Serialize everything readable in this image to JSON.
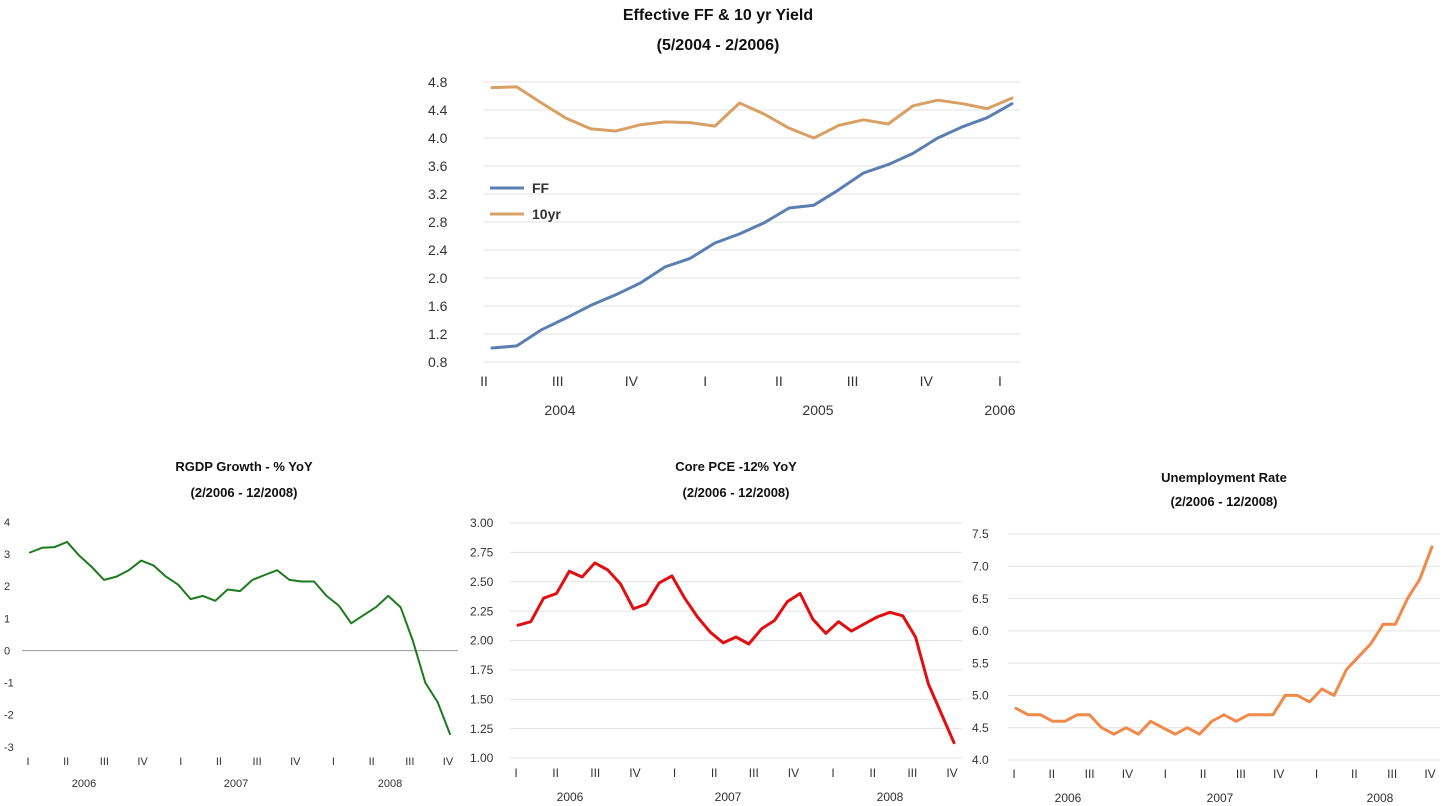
{
  "chart_data": [
    {
      "id": "ff",
      "type": "line",
      "title": "Effective FF & 10 yr Yield",
      "subtitle": "(5/2004 - 2/2006)",
      "ylim": [
        0.8,
        4.8
      ],
      "yticks": [
        "0.8",
        "1.2",
        "1.6",
        "2.0",
        "2.4",
        "2.8",
        "3.2",
        "3.6",
        "4.0",
        "4.4",
        "4.8"
      ],
      "quarter_labels": [
        "II",
        "III",
        "IV",
        "I",
        "II",
        "III",
        "IV",
        "I"
      ],
      "year_labels": [
        "2004",
        "2005",
        "2006"
      ],
      "grid": true,
      "legend": "left",
      "series": [
        {
          "name": "FF",
          "color": "#5b7fb0",
          "values": [
            1.0,
            1.03,
            1.26,
            1.43,
            1.61,
            1.76,
            1.93,
            2.16,
            2.28,
            2.5,
            2.63,
            2.79,
            3.0,
            3.04,
            3.26,
            3.5,
            3.62,
            3.78,
            4.0,
            4.16,
            4.29,
            4.49
          ]
        },
        {
          "name": "10yr",
          "color": "#d9a066",
          "values": [
            4.72,
            4.73,
            4.5,
            4.28,
            4.13,
            4.1,
            4.19,
            4.23,
            4.22,
            4.17,
            4.5,
            4.34,
            4.14,
            4.0,
            4.18,
            4.26,
            4.2,
            4.46,
            4.54,
            4.49,
            4.42,
            4.57
          ]
        }
      ]
    },
    {
      "id": "rgdp",
      "type": "line",
      "title": "RGDP Growth - % YoY",
      "subtitle": "(2/2006 - 12/2008)",
      "ylim": [
        -3,
        4
      ],
      "yticks": [
        "-3",
        "-2",
        "-1",
        "0",
        "1",
        "2",
        "3",
        "4"
      ],
      "quarter_labels": [
        "I",
        "II",
        "III",
        "IV",
        "I",
        "II",
        "III",
        "IV",
        "I",
        "II",
        "III",
        "IV"
      ],
      "year_labels": [
        "2006",
        "2007",
        "2008"
      ],
      "grid": false,
      "series": [
        {
          "name": "",
          "color": "#1e7a1e",
          "values": [
            3.05,
            3.2,
            3.22,
            3.38,
            2.95,
            2.6,
            2.2,
            2.3,
            2.5,
            2.8,
            2.65,
            2.3,
            2.05,
            1.6,
            1.7,
            1.55,
            1.9,
            1.85,
            2.2,
            2.35,
            2.5,
            2.2,
            2.15,
            2.15,
            1.7,
            1.4,
            0.85,
            1.1,
            1.35,
            1.7,
            1.35,
            0.3,
            -1.0,
            -1.6,
            -2.6
          ]
        }
      ]
    },
    {
      "id": "pce",
      "type": "line",
      "title": "Core PCE -12% YoY",
      "subtitle": "(2/2006 - 12/2008)",
      "ylim": [
        1.0,
        3.0
      ],
      "yticks": [
        "1.00",
        "1.25",
        "1.50",
        "1.75",
        "2.00",
        "2.25",
        "2.50",
        "2.75",
        "3.00"
      ],
      "quarter_labels": [
        "I",
        "II",
        "III",
        "IV",
        "I",
        "II",
        "III",
        "IV",
        "I",
        "II",
        "III",
        "IV"
      ],
      "year_labels": [
        "2006",
        "2007",
        "2008"
      ],
      "grid": true,
      "series": [
        {
          "name": "",
          "color": "#e01010",
          "values": [
            2.13,
            2.16,
            2.36,
            2.4,
            2.59,
            2.54,
            2.66,
            2.6,
            2.48,
            2.27,
            2.31,
            2.49,
            2.55,
            2.36,
            2.2,
            2.07,
            1.98,
            2.03,
            1.97,
            2.1,
            2.17,
            2.33,
            2.4,
            2.18,
            2.06,
            2.16,
            2.08,
            2.14,
            2.2,
            2.24,
            2.21,
            2.03,
            1.63,
            1.38,
            1.13
          ]
        }
      ]
    },
    {
      "id": "unemp",
      "type": "line",
      "title": "Unemployment Rate",
      "subtitle": "(2/2006 - 12/2008)",
      "ylim": [
        4.0,
        7.5
      ],
      "yticks": [
        "4.0",
        "4.5",
        "5.0",
        "5.5",
        "6.0",
        "6.5",
        "7.0",
        "7.5"
      ],
      "quarter_labels": [
        "I",
        "II",
        "III",
        "IV",
        "I",
        "II",
        "III",
        "IV",
        "I",
        "II",
        "III",
        "IV"
      ],
      "year_labels": [
        "2006",
        "2007",
        "2008"
      ],
      "grid": true,
      "series": [
        {
          "name": "",
          "color": "#f08a4b",
          "values": [
            4.8,
            4.7,
            4.7,
            4.6,
            4.6,
            4.7,
            4.7,
            4.5,
            4.4,
            4.5,
            4.4,
            4.6,
            4.5,
            4.4,
            4.5,
            4.4,
            4.6,
            4.7,
            4.6,
            4.7,
            4.7,
            4.7,
            5.0,
            5.0,
            4.9,
            5.1,
            5.0,
            5.4,
            5.6,
            5.8,
            6.1,
            6.1,
            6.5,
            6.8,
            7.3
          ]
        }
      ]
    }
  ]
}
